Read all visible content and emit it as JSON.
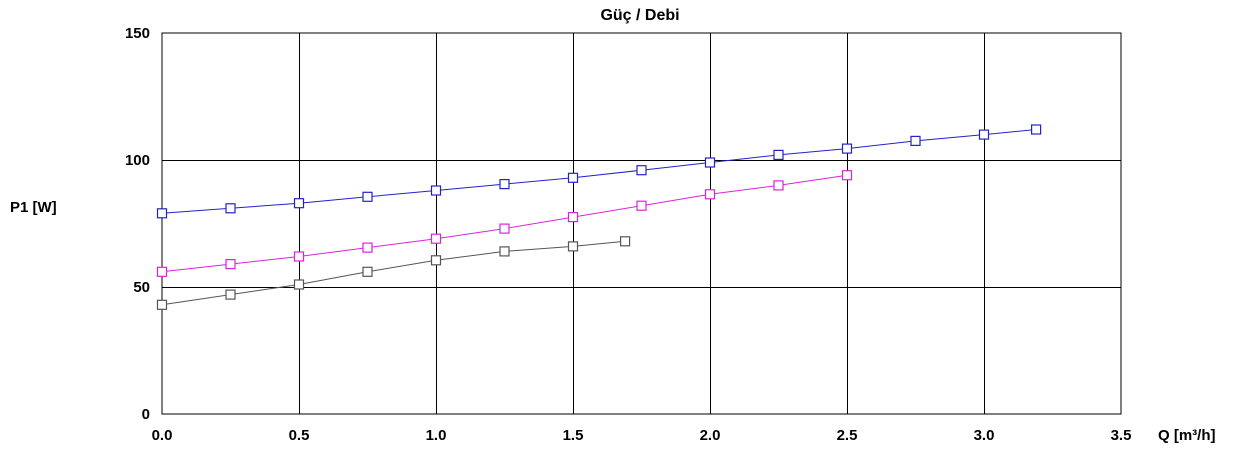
{
  "chart_data": {
    "type": "line",
    "title": "Güç / Debi",
    "xlabel": "Q [m³/h]",
    "ylabel": "P1 [W]",
    "xlim": [
      0,
      3.5
    ],
    "ylim": [
      0,
      150
    ],
    "x_ticks": [
      "0.0",
      "0.5",
      "1.0",
      "1.5",
      "2.0",
      "2.5",
      "3.0",
      "3.5"
    ],
    "x_tick_values": [
      0,
      0.5,
      1.0,
      1.5,
      2.0,
      2.5,
      3.0,
      3.5
    ],
    "y_ticks": [
      "0",
      "50",
      "100",
      "150"
    ],
    "y_tick_values": [
      0,
      50,
      100,
      150
    ],
    "grid": true,
    "marker": "square",
    "series": [
      {
        "color": "#2222cc",
        "x": [
          0,
          0.25,
          0.5,
          0.75,
          1.0,
          1.25,
          1.5,
          1.75,
          2.0,
          2.25,
          2.5,
          2.75,
          3.0,
          3.19
        ],
        "y": [
          79,
          81,
          83,
          85.5,
          88,
          90.5,
          93,
          96,
          99,
          102,
          104.5,
          107.5,
          110,
          112
        ]
      },
      {
        "color": "#dd22dd",
        "x": [
          0,
          0.25,
          0.5,
          0.75,
          1.0,
          1.25,
          1.5,
          1.75,
          2.0,
          2.25,
          2.5
        ],
        "y": [
          56,
          59,
          62,
          65.5,
          69,
          73,
          77.5,
          82,
          86.5,
          90,
          94
        ]
      },
      {
        "color": "#555555",
        "x": [
          0,
          0.25,
          0.5,
          0.75,
          1.0,
          1.25,
          1.5,
          1.69
        ],
        "y": [
          43,
          47,
          51,
          56,
          60.5,
          64,
          66,
          68
        ]
      }
    ]
  }
}
